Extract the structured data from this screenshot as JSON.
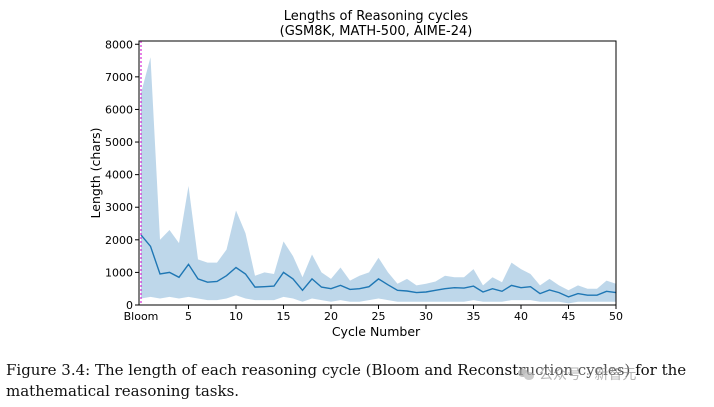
{
  "chart_data": {
    "type": "line",
    "title_line1": "Lengths of Reasoning cycles",
    "title_line2": "(GSM8K, MATH-500, AIME-24)",
    "xlabel": "Cycle Number",
    "ylabel": "Length (chars)",
    "xlim": [
      0,
      50
    ],
    "ylim": [
      0,
      8100
    ],
    "xticks": [
      5,
      10,
      15,
      20,
      25,
      30,
      35,
      40,
      45,
      50
    ],
    "yticks": [
      0,
      1000,
      2000,
      3000,
      4000,
      5000,
      6000,
      7000,
      8000
    ],
    "bloom_marker": {
      "x": 0,
      "label": "Bloom"
    },
    "x": [
      0,
      1,
      2,
      3,
      4,
      5,
      6,
      7,
      8,
      9,
      10,
      11,
      12,
      13,
      14,
      15,
      16,
      17,
      18,
      19,
      20,
      21,
      22,
      23,
      24,
      25,
      26,
      27,
      28,
      29,
      30,
      31,
      32,
      33,
      34,
      35,
      36,
      37,
      38,
      39,
      40,
      41,
      42,
      43,
      44,
      45,
      46,
      47,
      48,
      49,
      50
    ],
    "series": [
      {
        "name": "mean",
        "values": [
          2150,
          1800,
          950,
          1000,
          850,
          1250,
          800,
          700,
          720,
          900,
          1150,
          950,
          550,
          560,
          580,
          1000,
          800,
          450,
          800,
          550,
          500,
          600,
          480,
          500,
          560,
          800,
          620,
          450,
          430,
          380,
          400,
          450,
          500,
          530,
          520,
          580,
          400,
          500,
          420,
          600,
          530,
          560,
          350,
          460,
          380,
          250,
          350,
          300,
          300,
          420,
          380
        ]
      },
      {
        "name": "upper",
        "values": [
          6500,
          7600,
          2000,
          2300,
          1900,
          3650,
          1400,
          1300,
          1300,
          1700,
          2900,
          2200,
          900,
          1000,
          950,
          1950,
          1500,
          850,
          1550,
          1000,
          800,
          1150,
          750,
          900,
          1000,
          1450,
          1000,
          650,
          800,
          600,
          650,
          720,
          900,
          850,
          850,
          1100,
          600,
          850,
          700,
          1300,
          1100,
          950,
          600,
          800,
          600,
          450,
          600,
          500,
          500,
          750,
          650
        ]
      },
      {
        "name": "lower",
        "values": [
          200,
          250,
          200,
          250,
          200,
          250,
          200,
          150,
          150,
          200,
          300,
          200,
          150,
          150,
          150,
          250,
          200,
          100,
          200,
          150,
          100,
          150,
          100,
          100,
          150,
          200,
          150,
          100,
          100,
          100,
          100,
          100,
          100,
          100,
          100,
          150,
          100,
          100,
          100,
          150,
          150,
          150,
          100,
          100,
          100,
          50,
          100,
          100,
          100,
          100,
          100
        ]
      }
    ],
    "colors": {
      "line": "#1f77b4",
      "band": "#a8c9e3",
      "bloom": "#cc00cc"
    }
  },
  "caption": {
    "text": "Figure 3.4: The length of each reasoning cycle (Bloom and Reconstruction cycles) for the mathematical reasoning tasks."
  },
  "watermark": {
    "text": "公众号 · 新智元"
  }
}
